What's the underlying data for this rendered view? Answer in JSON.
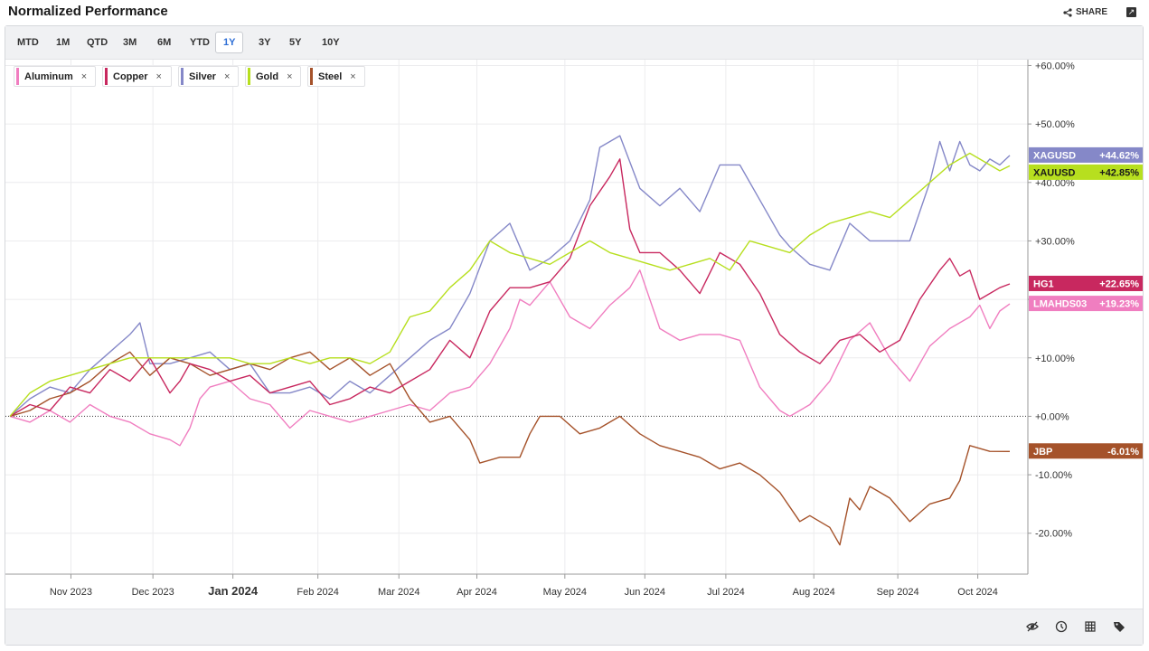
{
  "header": {
    "title": "Normalized Performance",
    "share_label": "SHARE"
  },
  "ranges": [
    "MTD",
    "1M",
    "QTD",
    "3M",
    "6M",
    "YTD",
    "1Y",
    "3Y",
    "5Y",
    "10Y"
  ],
  "active_range": "1Y",
  "chart_data": {
    "type": "line",
    "x_ticks": [
      "Nov 2023",
      "Dec 2023",
      "Jan 2024",
      "Feb 2024",
      "Mar 2024",
      "Apr 2024",
      "May 2024",
      "Jun 2024",
      "Jul 2024",
      "Aug 2024",
      "Sep 2024",
      "Oct 2024"
    ],
    "y_ticks": [
      "+60.00%",
      "+50.00%",
      "+40.00%",
      "+30.00%",
      "+20.00%",
      "+10.00%",
      "+0.00%",
      "-10.00%",
      "-20.00%"
    ],
    "ylim": [
      -27,
      61
    ],
    "grid": true,
    "legend_position": "top-left",
    "baseline": 0,
    "x_range": [
      0,
      100
    ],
    "series": [
      {
        "name": "Aluminum",
        "ticker": "LMAHDS03",
        "last_label": "+19.23%",
        "color": "#f07ec0",
        "last": 19.23,
        "points": [
          [
            0,
            0
          ],
          [
            2,
            -1
          ],
          [
            4,
            1
          ],
          [
            6,
            -1
          ],
          [
            8,
            2
          ],
          [
            10,
            0
          ],
          [
            12,
            -1
          ],
          [
            14,
            -3
          ],
          [
            16,
            -4
          ],
          [
            17,
            -5
          ],
          [
            18,
            -2
          ],
          [
            19,
            3
          ],
          [
            20,
            5
          ],
          [
            22,
            6
          ],
          [
            24,
            3
          ],
          [
            26,
            2
          ],
          [
            28,
            -2
          ],
          [
            30,
            1
          ],
          [
            32,
            0
          ],
          [
            34,
            -1
          ],
          [
            36,
            0
          ],
          [
            38,
            1
          ],
          [
            40,
            2
          ],
          [
            42,
            1
          ],
          [
            44,
            4
          ],
          [
            46,
            5
          ],
          [
            48,
            9
          ],
          [
            50,
            15
          ],
          [
            51,
            20
          ],
          [
            52,
            19
          ],
          [
            54,
            23
          ],
          [
            56,
            17
          ],
          [
            58,
            15
          ],
          [
            60,
            19
          ],
          [
            62,
            22
          ],
          [
            63,
            25
          ],
          [
            65,
            15
          ],
          [
            67,
            13
          ],
          [
            69,
            14
          ],
          [
            71,
            14
          ],
          [
            73,
            13
          ],
          [
            75,
            5
          ],
          [
            77,
            1
          ],
          [
            78,
            0
          ],
          [
            80,
            2
          ],
          [
            82,
            6
          ],
          [
            84,
            13
          ],
          [
            86,
            16
          ],
          [
            88,
            10
          ],
          [
            90,
            6
          ],
          [
            92,
            12
          ],
          [
            94,
            15
          ],
          [
            96,
            17
          ],
          [
            97,
            19
          ],
          [
            98,
            15
          ],
          [
            99,
            18
          ],
          [
            100,
            19.23
          ]
        ]
      },
      {
        "name": "Copper",
        "ticker": "HG1",
        "last_label": "+22.65%",
        "color": "#c8285f",
        "last": 22.65,
        "points": [
          [
            0,
            0
          ],
          [
            2,
            2
          ],
          [
            4,
            1
          ],
          [
            6,
            5
          ],
          [
            8,
            4
          ],
          [
            10,
            8
          ],
          [
            12,
            6
          ],
          [
            14,
            10
          ],
          [
            16,
            4
          ],
          [
            17,
            6
          ],
          [
            18,
            9
          ],
          [
            20,
            8
          ],
          [
            22,
            6
          ],
          [
            24,
            7
          ],
          [
            26,
            4
          ],
          [
            28,
            5
          ],
          [
            30,
            6
          ],
          [
            32,
            2
          ],
          [
            34,
            3
          ],
          [
            36,
            5
          ],
          [
            38,
            4
          ],
          [
            40,
            6
          ],
          [
            42,
            8
          ],
          [
            44,
            13
          ],
          [
            46,
            10
          ],
          [
            48,
            18
          ],
          [
            50,
            22
          ],
          [
            52,
            22
          ],
          [
            54,
            23
          ],
          [
            56,
            27
          ],
          [
            58,
            36
          ],
          [
            60,
            41
          ],
          [
            61,
            44
          ],
          [
            62,
            32
          ],
          [
            63,
            28
          ],
          [
            65,
            28
          ],
          [
            67,
            25
          ],
          [
            69,
            21
          ],
          [
            71,
            28
          ],
          [
            73,
            26
          ],
          [
            75,
            21
          ],
          [
            77,
            14
          ],
          [
            79,
            11
          ],
          [
            81,
            9
          ],
          [
            83,
            13
          ],
          [
            85,
            14
          ],
          [
            87,
            11
          ],
          [
            89,
            13
          ],
          [
            91,
            20
          ],
          [
            93,
            25
          ],
          [
            94,
            27
          ],
          [
            95,
            24
          ],
          [
            96,
            25
          ],
          [
            97,
            20
          ],
          [
            98,
            21
          ],
          [
            99,
            22
          ],
          [
            100,
            22.65
          ]
        ]
      },
      {
        "name": "Silver",
        "ticker": "XAGUSD",
        "last_label": "+44.62%",
        "color": "#8588c8",
        "last": 44.62,
        "points": [
          [
            0,
            0
          ],
          [
            2,
            3
          ],
          [
            4,
            5
          ],
          [
            6,
            4
          ],
          [
            8,
            8
          ],
          [
            10,
            11
          ],
          [
            12,
            14
          ],
          [
            13,
            16
          ],
          [
            14,
            9
          ],
          [
            16,
            9
          ],
          [
            18,
            10
          ],
          [
            20,
            11
          ],
          [
            22,
            8
          ],
          [
            24,
            9
          ],
          [
            26,
            4
          ],
          [
            28,
            4
          ],
          [
            30,
            5
          ],
          [
            32,
            3
          ],
          [
            34,
            6
          ],
          [
            36,
            4
          ],
          [
            38,
            7
          ],
          [
            40,
            10
          ],
          [
            42,
            13
          ],
          [
            44,
            15
          ],
          [
            46,
            21
          ],
          [
            48,
            30
          ],
          [
            50,
            33
          ],
          [
            52,
            25
          ],
          [
            54,
            27
          ],
          [
            56,
            30
          ],
          [
            58,
            37
          ],
          [
            59,
            46
          ],
          [
            61,
            48
          ],
          [
            63,
            39
          ],
          [
            65,
            36
          ],
          [
            67,
            39
          ],
          [
            69,
            35
          ],
          [
            71,
            43
          ],
          [
            73,
            43
          ],
          [
            75,
            37
          ],
          [
            77,
            31
          ],
          [
            78,
            29
          ],
          [
            80,
            26
          ],
          [
            82,
            25
          ],
          [
            84,
            33
          ],
          [
            86,
            30
          ],
          [
            88,
            30
          ],
          [
            90,
            30
          ],
          [
            92,
            40
          ],
          [
            93,
            47
          ],
          [
            94,
            42
          ],
          [
            95,
            47
          ],
          [
            96,
            43
          ],
          [
            97,
            42
          ],
          [
            98,
            44
          ],
          [
            99,
            43
          ],
          [
            100,
            44.62
          ]
        ]
      },
      {
        "name": "Gold",
        "ticker": "XAUUSD",
        "last_label": "+42.85%",
        "color": "#b7df1f",
        "last": 42.85,
        "points": [
          [
            0,
            0
          ],
          [
            2,
            4
          ],
          [
            4,
            6
          ],
          [
            6,
            7
          ],
          [
            8,
            8
          ],
          [
            10,
            9
          ],
          [
            12,
            10
          ],
          [
            14,
            10
          ],
          [
            16,
            10
          ],
          [
            18,
            10
          ],
          [
            20,
            10
          ],
          [
            22,
            10
          ],
          [
            24,
            9
          ],
          [
            26,
            9
          ],
          [
            28,
            10
          ],
          [
            30,
            9
          ],
          [
            32,
            10
          ],
          [
            34,
            10
          ],
          [
            36,
            9
          ],
          [
            38,
            11
          ],
          [
            40,
            17
          ],
          [
            42,
            18
          ],
          [
            44,
            22
          ],
          [
            46,
            25
          ],
          [
            48,
            30
          ],
          [
            50,
            28
          ],
          [
            52,
            27
          ],
          [
            54,
            26
          ],
          [
            56,
            28
          ],
          [
            58,
            30
          ],
          [
            60,
            28
          ],
          [
            62,
            27
          ],
          [
            64,
            26
          ],
          [
            66,
            25
          ],
          [
            68,
            26
          ],
          [
            70,
            27
          ],
          [
            72,
            25
          ],
          [
            74,
            30
          ],
          [
            76,
            29
          ],
          [
            78,
            28
          ],
          [
            80,
            31
          ],
          [
            82,
            33
          ],
          [
            84,
            34
          ],
          [
            86,
            35
          ],
          [
            88,
            34
          ],
          [
            90,
            37
          ],
          [
            92,
            40
          ],
          [
            94,
            43
          ],
          [
            96,
            45
          ],
          [
            98,
            43
          ],
          [
            99,
            42
          ],
          [
            100,
            42.85
          ]
        ]
      },
      {
        "name": "Steel",
        "ticker": "JBP",
        "last_label": "-6.01%",
        "color": "#a5522a",
        "last": -6.01,
        "points": [
          [
            0,
            0
          ],
          [
            2,
            1
          ],
          [
            4,
            3
          ],
          [
            6,
            4
          ],
          [
            8,
            6
          ],
          [
            10,
            9
          ],
          [
            12,
            11
          ],
          [
            14,
            7
          ],
          [
            16,
            10
          ],
          [
            18,
            9
          ],
          [
            20,
            7
          ],
          [
            22,
            8
          ],
          [
            24,
            9
          ],
          [
            26,
            8
          ],
          [
            28,
            10
          ],
          [
            30,
            11
          ],
          [
            32,
            8
          ],
          [
            34,
            10
          ],
          [
            36,
            7
          ],
          [
            38,
            9
          ],
          [
            40,
            3
          ],
          [
            42,
            -1
          ],
          [
            44,
            0
          ],
          [
            46,
            -4
          ],
          [
            47,
            -8
          ],
          [
            49,
            -7
          ],
          [
            51,
            -7
          ],
          [
            52,
            -3
          ],
          [
            53,
            0
          ],
          [
            55,
            0
          ],
          [
            57,
            -3
          ],
          [
            59,
            -2
          ],
          [
            61,
            0
          ],
          [
            63,
            -3
          ],
          [
            65,
            -5
          ],
          [
            67,
            -6
          ],
          [
            69,
            -7
          ],
          [
            71,
            -9
          ],
          [
            73,
            -8
          ],
          [
            75,
            -10
          ],
          [
            77,
            -13
          ],
          [
            79,
            -18
          ],
          [
            80,
            -17
          ],
          [
            82,
            -19
          ],
          [
            83,
            -22
          ],
          [
            84,
            -14
          ],
          [
            85,
            -16
          ],
          [
            86,
            -12
          ],
          [
            88,
            -14
          ],
          [
            90,
            -18
          ],
          [
            92,
            -15
          ],
          [
            94,
            -14
          ],
          [
            95,
            -11
          ],
          [
            96,
            -5
          ],
          [
            98,
            -6
          ],
          [
            100,
            -6.01
          ]
        ]
      }
    ]
  }
}
